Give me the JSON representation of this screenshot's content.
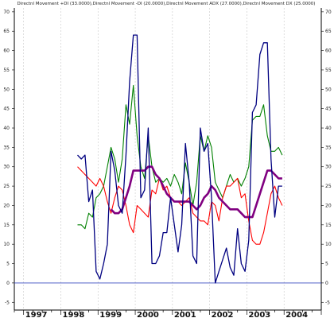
{
  "chart_data": {
    "type": "line",
    "title": "Directnl Movement +DI (33.0000),Directnl Movement -DI (20.0000),Directnl Movement ADX (27.0000),Directnl Movement DX (25.0000)",
    "xlabel": "",
    "ylabel": "",
    "x_tick_labels": [
      "1997",
      "1998",
      "1999",
      "2000",
      "2001",
      "2002",
      "2003",
      "2004"
    ],
    "x_tick_positions": [
      1997,
      1998,
      1999,
      2000,
      2001,
      2002,
      2003,
      2004
    ],
    "xlim": [
      1996.75,
      2005.0
    ],
    "y_ticks": [
      -5,
      0,
      5,
      10,
      15,
      20,
      25,
      30,
      35,
      40,
      45,
      50,
      55,
      60,
      65,
      70
    ],
    "ylim": [
      -7,
      71
    ],
    "grid": "vertical-dashed",
    "zero_line": 0,
    "series": [
      {
        "name": "+DI",
        "color": "#008000",
        "x": [
          1998.45,
          1998.55,
          1998.65,
          1998.75,
          1998.85,
          1998.95,
          1999.05,
          1999.15,
          1999.25,
          1999.35,
          1999.45,
          1999.55,
          1999.65,
          1999.75,
          1999.85,
          1999.95,
          2000.05,
          2000.15,
          2000.25,
          2000.35,
          2000.45,
          2000.55,
          2000.65,
          2000.75,
          2000.85,
          2000.95,
          2001.05,
          2001.15,
          2001.25,
          2001.35,
          2001.45,
          2001.55,
          2001.65,
          2001.75,
          2001.85,
          2001.95,
          2002.05,
          2002.15,
          2002.25,
          2002.35,
          2002.45,
          2002.55,
          2002.65,
          2002.75,
          2002.85,
          2002.95,
          2003.05,
          2003.15,
          2003.25,
          2003.35,
          2003.45,
          2003.55,
          2003.65,
          2003.75,
          2003.85,
          2003.95
        ],
        "values": [
          15,
          15,
          14,
          18,
          17,
          22,
          23,
          25,
          30,
          35,
          32,
          26,
          32,
          46,
          41,
          51,
          38,
          30,
          27,
          38,
          30,
          26,
          27,
          26,
          27,
          25,
          28,
          26,
          23,
          31,
          26,
          20,
          26,
          38,
          34,
          38,
          35,
          26,
          24,
          22,
          25,
          28,
          26,
          27,
          25,
          27,
          30,
          42,
          43,
          43,
          46,
          38,
          34,
          34,
          35,
          33
        ]
      },
      {
        "name": "-DI",
        "color": "#ff0000",
        "x": [
          1998.45,
          1998.55,
          1998.65,
          1998.75,
          1998.85,
          1998.95,
          1999.05,
          1999.15,
          1999.25,
          1999.35,
          1999.45,
          1999.55,
          1999.65,
          1999.75,
          1999.85,
          1999.95,
          2000.05,
          2000.15,
          2000.25,
          2000.35,
          2000.45,
          2000.55,
          2000.65,
          2000.75,
          2000.85,
          2000.95,
          2001.05,
          2001.15,
          2001.25,
          2001.35,
          2001.45,
          2001.55,
          2001.65,
          2001.75,
          2001.85,
          2001.95,
          2002.05,
          2002.15,
          2002.25,
          2002.35,
          2002.45,
          2002.55,
          2002.65,
          2002.75,
          2002.85,
          2002.95,
          2003.05,
          2003.15,
          2003.25,
          2003.35,
          2003.45,
          2003.55,
          2003.65,
          2003.75,
          2003.85,
          2003.95
        ],
        "values": [
          30,
          29,
          28,
          27,
          26,
          25,
          27,
          25,
          21,
          18,
          22,
          25,
          24,
          20,
          15,
          13,
          20,
          19,
          18,
          17,
          24,
          23,
          27,
          24,
          25,
          22,
          21,
          21,
          20,
          21,
          22,
          18,
          17,
          16,
          16,
          15,
          21,
          20,
          16,
          22,
          25,
          25,
          26,
          27,
          22,
          23,
          16,
          11,
          10,
          10,
          13,
          18,
          23,
          25,
          22,
          20
        ]
      },
      {
        "name": "ADX",
        "color": "#800080",
        "x": [
          1999.35,
          1999.45,
          1999.55,
          1999.65,
          1999.75,
          1999.85,
          1999.95,
          2000.05,
          2000.15,
          2000.25,
          2000.35,
          2000.45,
          2000.55,
          2000.65,
          2000.75,
          2000.85,
          2000.95,
          2001.05,
          2001.15,
          2001.25,
          2001.35,
          2001.45,
          2001.55,
          2001.65,
          2001.75,
          2001.85,
          2001.95,
          2002.05,
          2002.15,
          2002.25,
          2002.35,
          2002.45,
          2002.55,
          2002.65,
          2002.75,
          2002.85,
          2002.95,
          2003.05,
          2003.15,
          2003.25,
          2003.35,
          2003.45,
          2003.55,
          2003.65,
          2003.75,
          2003.85,
          2003.95
        ],
        "values": [
          19,
          18,
          18,
          19,
          22,
          25,
          29,
          29,
          29,
          29,
          30,
          30,
          28,
          27,
          25,
          23,
          22,
          21,
          21,
          21,
          21,
          21,
          20,
          19,
          20,
          22,
          23,
          25,
          24,
          22,
          21,
          20,
          19,
          19,
          19,
          18,
          17,
          17,
          17,
          20,
          23,
          26,
          29,
          29,
          28,
          27,
          27
        ]
      },
      {
        "name": "DX",
        "color": "#000080",
        "x": [
          1998.45,
          1998.55,
          1998.65,
          1998.75,
          1998.85,
          1998.95,
          1999.05,
          1999.15,
          1999.25,
          1999.35,
          1999.45,
          1999.55,
          1999.65,
          1999.75,
          1999.85,
          1999.95,
          2000.05,
          2000.15,
          2000.25,
          2000.35,
          2000.45,
          2000.55,
          2000.65,
          2000.75,
          2000.85,
          2000.95,
          2001.05,
          2001.15,
          2001.25,
          2001.35,
          2001.45,
          2001.55,
          2001.65,
          2001.75,
          2001.85,
          2001.95,
          2002.05,
          2002.15,
          2002.25,
          2002.35,
          2002.45,
          2002.55,
          2002.65,
          2002.75,
          2002.85,
          2002.95,
          2003.05,
          2003.15,
          2003.25,
          2003.35,
          2003.45,
          2003.55,
          2003.65,
          2003.75,
          2003.85,
          2003.95
        ],
        "values": [
          33,
          32,
          33,
          21,
          24,
          3,
          1,
          5,
          10,
          34,
          29,
          20,
          18,
          33,
          52,
          64,
          64,
          22,
          24,
          40,
          5,
          5,
          7,
          13,
          13,
          22,
          15,
          8,
          15,
          36,
          26,
          7,
          5,
          40,
          34,
          36,
          22,
          0,
          3,
          6,
          9,
          4,
          2,
          14,
          5,
          3,
          11,
          44,
          46,
          59,
          62,
          62,
          32,
          17,
          25,
          25
        ]
      }
    ]
  }
}
